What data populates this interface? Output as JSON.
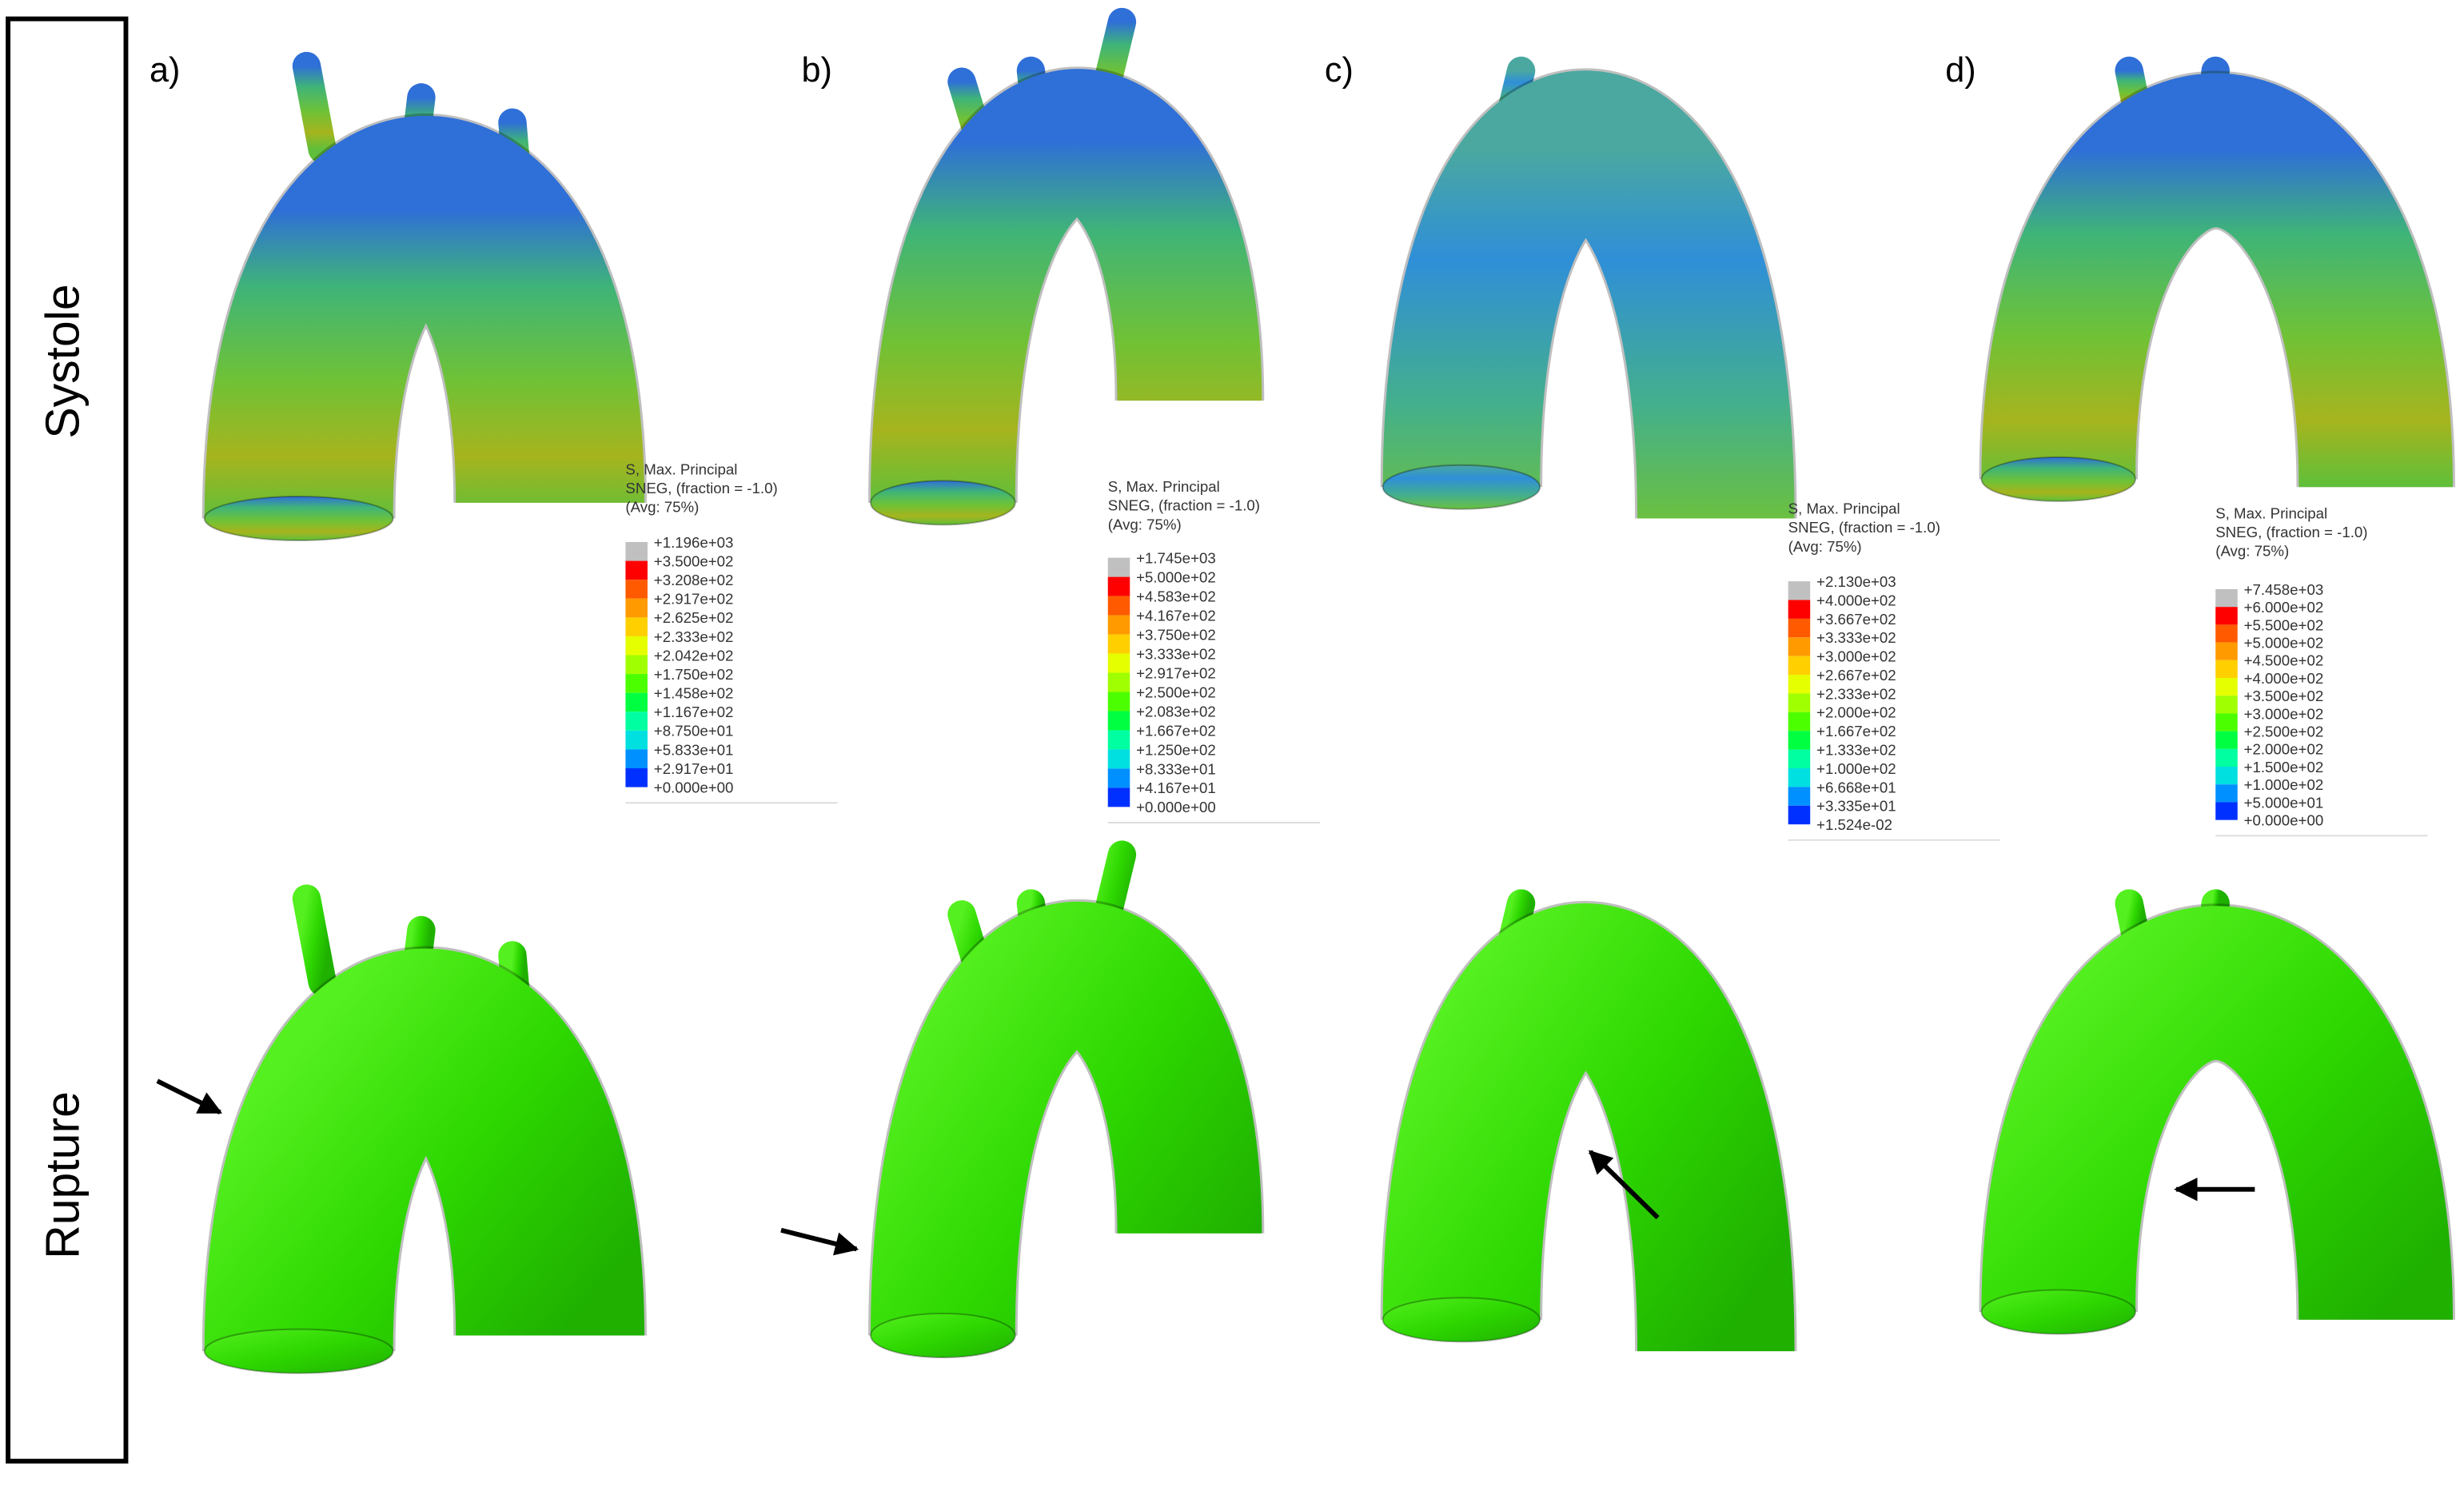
{
  "row_labels": [
    "Systole",
    "Rupture"
  ],
  "panels": [
    {
      "label": "a)",
      "legend": {
        "title": [
          "S, Max. Principal",
          "SNEG, (fraction = -1.0)",
          "(Avg: 75%)"
        ],
        "values": [
          "+1.196e+03",
          "+3.500e+02",
          "+3.208e+02",
          "+2.917e+02",
          "+2.625e+02",
          "+2.333e+02",
          "+2.042e+02",
          "+1.750e+02",
          "+1.458e+02",
          "+1.167e+02",
          "+8.750e+01",
          "+5.833e+01",
          "+2.917e+01",
          "+0.000e+00"
        ]
      }
    },
    {
      "label": "b)",
      "legend": {
        "title": [
          "S, Max. Principal",
          "SNEG, (fraction = -1.0)",
          "(Avg: 75%)"
        ],
        "values": [
          "+1.745e+03",
          "+5.000e+02",
          "+4.583e+02",
          "+4.167e+02",
          "+3.750e+02",
          "+3.333e+02",
          "+2.917e+02",
          "+2.500e+02",
          "+2.083e+02",
          "+1.667e+02",
          "+1.250e+02",
          "+8.333e+01",
          "+4.167e+01",
          "+0.000e+00"
        ]
      }
    },
    {
      "label": "c)",
      "legend": {
        "title": [
          "S, Max. Principal",
          "SNEG, (fraction = -1.0)",
          "(Avg: 75%)"
        ],
        "values": [
          "+2.130e+03",
          "+4.000e+02",
          "+3.667e+02",
          "+3.333e+02",
          "+3.000e+02",
          "+2.667e+02",
          "+2.333e+02",
          "+2.000e+02",
          "+1.667e+02",
          "+1.333e+02",
          "+1.000e+02",
          "+6.668e+01",
          "+3.335e+01",
          "+1.524e-02"
        ]
      }
    },
    {
      "label": "d)",
      "legend": {
        "title": [
          "S, Max. Principal",
          "SNEG, (fraction = -1.0)",
          "(Avg: 75%)"
        ],
        "values": [
          "+7.458e+03",
          "+6.000e+02",
          "+5.500e+02",
          "+5.000e+02",
          "+4.500e+02",
          "+4.000e+02",
          "+3.500e+02",
          "+3.000e+02",
          "+2.500e+02",
          "+2.000e+02",
          "+1.500e+02",
          "+1.000e+02",
          "+5.000e+01",
          "+0.000e+00"
        ]
      }
    }
  ]
}
